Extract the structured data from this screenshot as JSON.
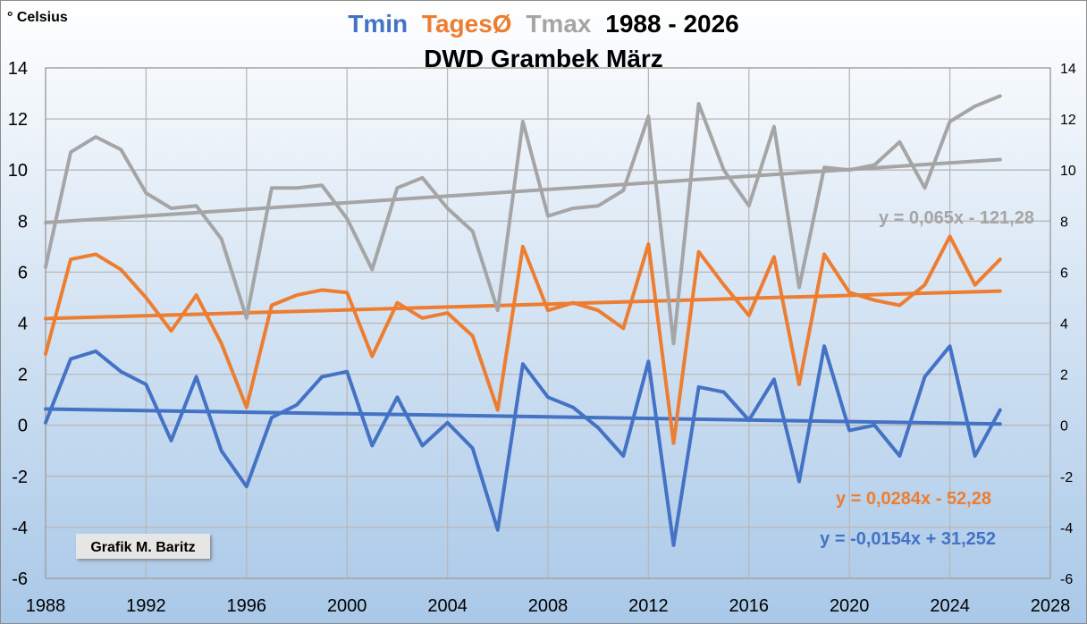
{
  "chart_data": {
    "type": "line",
    "title": {
      "parts": [
        {
          "text": "Tmin",
          "color": "#4472C4"
        },
        {
          "text": "TagesØ",
          "color": "#ED7D31"
        },
        {
          "text": "Tmax",
          "color": "#A5A5A5"
        },
        {
          "text": "1988 - 2026",
          "color": "#000000"
        }
      ],
      "line2": "DWD Grambek März"
    },
    "ylabel": "° Celsius",
    "credit": "Grafik M. Baritz",
    "xlim": [
      1988,
      2028
    ],
    "ylim": [
      -6,
      14
    ],
    "xticks": [
      "1988",
      "1992",
      "1996",
      "2000",
      "2004",
      "2008",
      "2012",
      "2016",
      "2020",
      "2024",
      "2028"
    ],
    "yticks": [
      "-6",
      "-4",
      "-2",
      "0",
      "2",
      "4",
      "6",
      "8",
      "10",
      "12",
      "14"
    ],
    "grid": true,
    "x": [
      1988,
      1989,
      1990,
      1991,
      1992,
      1993,
      1994,
      1995,
      1996,
      1997,
      1998,
      1999,
      2000,
      2001,
      2002,
      2003,
      2004,
      2005,
      2006,
      2007,
      2008,
      2009,
      2010,
      2011,
      2012,
      2013,
      2014,
      2015,
      2016,
      2017,
      2018,
      2019,
      2020,
      2021,
      2022,
      2023,
      2024,
      2025,
      2026
    ],
    "series": [
      {
        "key": "tmax",
        "color": "#A5A5A5",
        "values": [
          6.2,
          10.7,
          11.3,
          10.8,
          9.1,
          8.5,
          8.6,
          7.3,
          4.2,
          9.3,
          9.3,
          9.4,
          8.1,
          6.1,
          9.3,
          9.7,
          8.5,
          7.6,
          4.5,
          11.9,
          8.2,
          8.5,
          8.6,
          9.2,
          12.1,
          3.2,
          12.6,
          10.0,
          8.6,
          11.7,
          5.4,
          10.1,
          10.0,
          10.2,
          11.1,
          9.3,
          11.9,
          12.5,
          12.9
        ]
      },
      {
        "key": "tavg",
        "color": "#ED7D31",
        "values": [
          2.8,
          6.5,
          6.7,
          6.1,
          5.0,
          3.7,
          5.1,
          3.2,
          0.7,
          4.7,
          5.1,
          5.3,
          5.2,
          2.7,
          4.8,
          4.2,
          4.4,
          3.5,
          0.6,
          7.0,
          4.5,
          4.8,
          4.5,
          3.8,
          7.1,
          -0.7,
          6.8,
          5.5,
          4.3,
          6.6,
          1.6,
          6.7,
          5.2,
          4.9,
          4.7,
          5.5,
          7.4,
          5.5,
          6.5
        ]
      },
      {
        "key": "tmin",
        "color": "#4472C4",
        "values": [
          0.1,
          2.6,
          2.9,
          2.1,
          1.6,
          -0.6,
          1.9,
          -1.0,
          -2.4,
          0.3,
          0.8,
          1.9,
          2.1,
          -0.8,
          1.1,
          -0.8,
          0.1,
          -0.9,
          -4.1,
          2.4,
          1.1,
          0.7,
          -0.1,
          -1.2,
          2.5,
          -4.7,
          1.5,
          1.3,
          0.2,
          1.8,
          -2.2,
          3.1,
          -0.2,
          0.0,
          -1.2,
          1.9,
          3.1,
          -1.2,
          0.6
        ]
      }
    ],
    "trendlines": [
      {
        "key": "tmax",
        "color": "#A5A5A5",
        "slope": 0.065,
        "intercept": -121.28,
        "label": "y = 0,065x - 121,28"
      },
      {
        "key": "tavg",
        "color": "#ED7D31",
        "slope": 0.0284,
        "intercept": -52.28,
        "label": "y = 0,0284x - 52,28"
      },
      {
        "key": "tmin",
        "color": "#4472C4",
        "slope": -0.0154,
        "intercept": 31.252,
        "label": "y = -0,0154x + 31,252"
      }
    ]
  }
}
